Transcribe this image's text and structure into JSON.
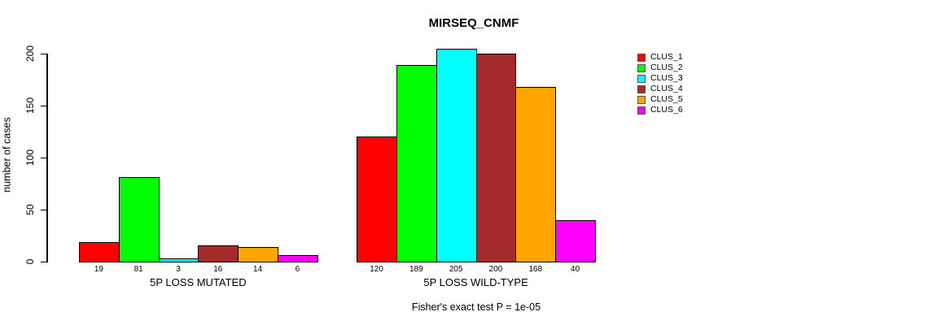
{
  "chart_data": {
    "type": "bar",
    "title": "MIRSEQ_CNMF",
    "ylabel": "number of cases",
    "xlabel": "",
    "footnote": "Fisher's exact test P = 1e-05",
    "ylim": [
      0,
      200
    ],
    "yticks": [
      0,
      50,
      100,
      150,
      200
    ],
    "grid": false,
    "legend_position": "right",
    "categories": [
      "5P LOSS MUTATED",
      "5P LOSS WILD-TYPE"
    ],
    "series": [
      {
        "name": "CLUS_1",
        "color": "#FF0000",
        "values": [
          19,
          120
        ]
      },
      {
        "name": "CLUS_2",
        "color": "#00FF00",
        "values": [
          81,
          189
        ]
      },
      {
        "name": "CLUS_3",
        "color": "#00FFFF",
        "values": [
          3,
          205
        ]
      },
      {
        "name": "CLUS_4",
        "color": "#A52A2A",
        "values": [
          16,
          200
        ]
      },
      {
        "name": "CLUS_5",
        "color": "#FFA500",
        "values": [
          14,
          168
        ]
      },
      {
        "name": "CLUS_6",
        "color": "#FF00FF",
        "values": [
          6,
          40
        ]
      }
    ],
    "bar_value_labels": {
      "5P LOSS MUTATED": [
        19,
        81,
        3,
        16,
        14,
        6
      ],
      "5P LOSS WILD-TYPE": [
        120,
        189,
        205,
        200,
        168,
        40
      ]
    }
  }
}
